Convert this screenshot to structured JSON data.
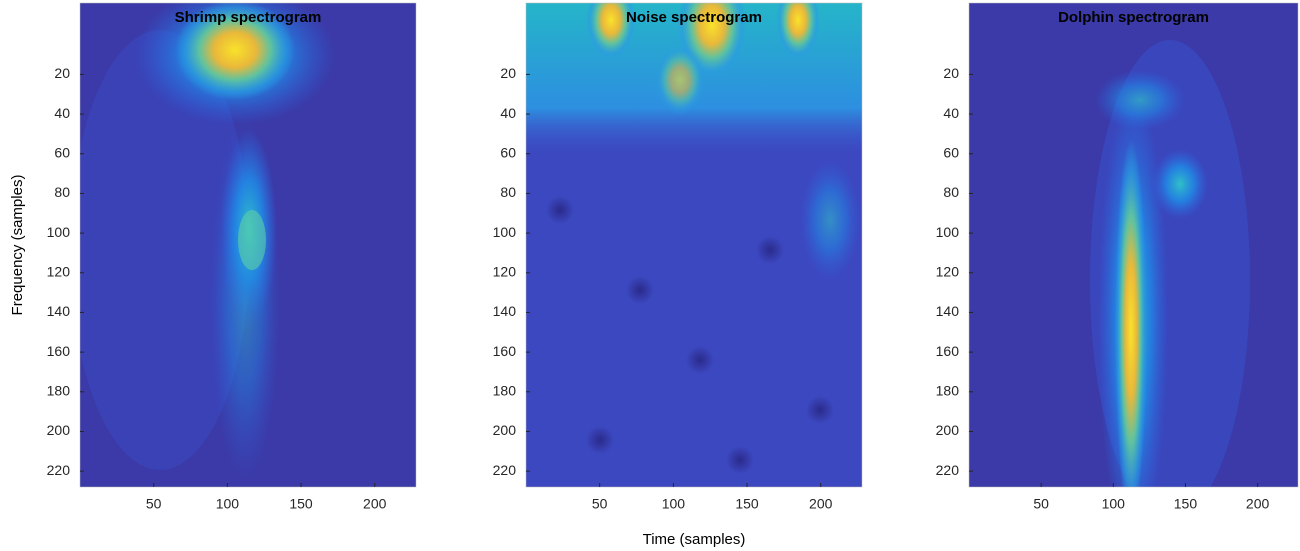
{
  "chart_data": [
    {
      "type": "heatmap",
      "title": "Shrimp spectrogram",
      "ylabel": "Frequency (samples)",
      "xlim": [
        0,
        228
      ],
      "ylim": [
        -16,
        228
      ],
      "xticks": [
        50,
        100,
        150,
        200
      ],
      "yticks": [
        20,
        40,
        60,
        80,
        100,
        120,
        140,
        160,
        180,
        200,
        220
      ]
    },
    {
      "type": "heatmap",
      "title": "Noise spectrogram",
      "xlabel": "Time (samples)",
      "xlim": [
        0,
        228
      ],
      "ylim": [
        -16,
        228
      ],
      "xticks": [
        50,
        100,
        150,
        200
      ],
      "yticks": [
        20,
        40,
        60,
        80,
        100,
        120,
        140,
        160,
        180,
        200,
        220
      ]
    },
    {
      "type": "heatmap",
      "title": "Dolphin spectrogram",
      "xlim": [
        0,
        228
      ],
      "ylim": [
        -16,
        228
      ],
      "xticks": [
        50,
        100,
        150,
        200
      ],
      "yticks": [
        20,
        40,
        60,
        80,
        100,
        120,
        140,
        160,
        180,
        200,
        220
      ]
    }
  ]
}
